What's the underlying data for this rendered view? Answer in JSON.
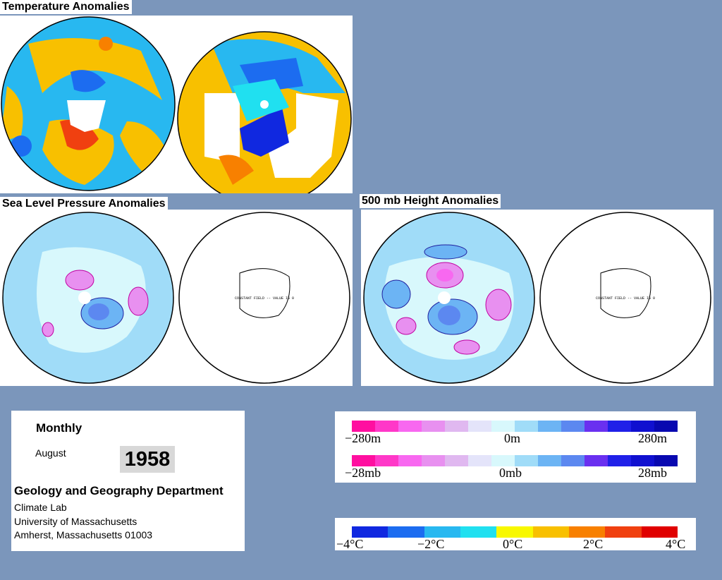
{
  "sections": {
    "temperature_title": "Temperature Anomalies",
    "slp_title": "Sea Level Pressure Anomalies",
    "height_title": "500 mb Height Anomalies"
  },
  "constant_field_label": "CONSTANT FIELD -- VALUE IS 0",
  "info": {
    "period": "Monthly",
    "month": "August",
    "year": "1958",
    "department": "Geology and Geography Department",
    "lab": "Climate Lab",
    "university": "University of Massachusetts",
    "address": "Amherst, Massachusetts 01003"
  },
  "height_scale": {
    "left": "−280m",
    "center": "0m",
    "right": "280m"
  },
  "pressure_scale": {
    "left": "−28mb",
    "center": "0mb",
    "right": "28mb"
  },
  "temp_scale": {
    "t1": "−4°C",
    "t2": "−2°C",
    "t3": "0°C",
    "t4": "2°C",
    "t5": "4°C"
  },
  "colors": {
    "background": "#7b96bb",
    "anomaly_scale": [
      "#ff0fa0",
      "#ff38c8",
      "#f868f0",
      "#e890f0",
      "#e0b8f0",
      "#e4e4fa",
      "#d8f8fc",
      "#a0dcf8",
      "#6cb4f4",
      "#5c88f0",
      "#6a30f0",
      "#2020e8",
      "#1010d0",
      "#0808b0"
    ],
    "temp_scale": [
      "#1028e0",
      "#1c6cf0",
      "#28b8f0",
      "#20e0f0",
      "#f8f800",
      "#f8c000",
      "#f88000",
      "#f04010",
      "#e00000"
    ]
  }
}
